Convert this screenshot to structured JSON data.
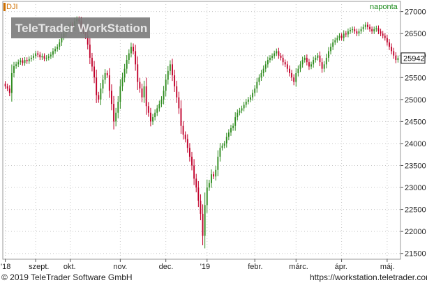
{
  "header": {
    "symbol": "DJI",
    "interval": "naponta",
    "watermark": "TeleTrader WorkStation"
  },
  "footer": {
    "copyright": "© 2019 TeleTrader Software GmbH",
    "url": "https://workstation.teletrader.com/"
  },
  "colors": {
    "up": "#2e8b1e",
    "down": "#c0002a",
    "grid": "#c8c8c8",
    "watermark_bg": "#7a7a7a",
    "axis_text": "#222222",
    "interval_text": "#1a8a1a"
  },
  "chart_data": {
    "type": "candlestick",
    "title": "DJI",
    "grid": true,
    "y_axis": {
      "position": "right",
      "min": 21400,
      "max": 27200,
      "ticks": [
        21500,
        22000,
        22500,
        23000,
        23500,
        24000,
        24500,
        25000,
        25500,
        26000,
        26500,
        27000
      ],
      "tick_labels": [
        "21500",
        "22000",
        "22500",
        "23000",
        "23500",
        "24000",
        "24500",
        "25000",
        "25500",
        "26000",
        "26500",
        "27000"
      ]
    },
    "x_axis": {
      "labels": [
        {
          "label": "'18",
          "index": 0
        },
        {
          "label": "szept.",
          "index": 14
        },
        {
          "label": "okt.",
          "index": 30
        },
        {
          "label": "nov.",
          "index": 53
        },
        {
          "label": "dec.",
          "index": 74
        },
        {
          "label": "'19",
          "index": 93
        },
        {
          "label": "febr.",
          "index": 115
        },
        {
          "label": "márc.",
          "index": 134
        },
        {
          "label": "ápr.",
          "index": 155
        },
        {
          "label": "máj.",
          "index": 176
        }
      ]
    },
    "last_value": 25942,
    "last_value_label": "25942",
    "closes": [
      25300,
      25250,
      25150,
      25600,
      25760,
      25800,
      25850,
      25890,
      25830,
      25900,
      25870,
      25920,
      25950,
      25990,
      26050,
      26020,
      25960,
      25990,
      25930,
      25950,
      25980,
      26020,
      26100,
      26150,
      26200,
      26300,
      26420,
      26500,
      26600,
      26650,
      26700,
      26650,
      26780,
      26830,
      26780,
      26600,
      26550,
      26450,
      26250,
      25950,
      25750,
      25500,
      25100,
      25000,
      25250,
      25450,
      25600,
      25550,
      25200,
      24900,
      24500,
      24700,
      24950,
      25300,
      25500,
      25700,
      25900,
      26050,
      26200,
      26100,
      25800,
      25400,
      25250,
      25050,
      25300,
      24850,
      24700,
      24500,
      24600,
      24700,
      24800,
      24900,
      25000,
      25200,
      25450,
      25650,
      25800,
      25550,
      25300,
      25050,
      24800,
      24400,
      24200,
      24100,
      23900,
      23700,
      23500,
      23200,
      23000,
      22700,
      22400,
      21900,
      22600,
      23000,
      23100,
      23300,
      23250,
      23400,
      23700,
      23900,
      23950,
      24000,
      24150,
      24250,
      24350,
      24400,
      24600,
      24700,
      24750,
      24800,
      24880,
      24950,
      25000,
      25050,
      25150,
      25250,
      25400,
      25500,
      25600,
      25700,
      25800,
      25900,
      25950,
      25990,
      26050,
      26100,
      26000,
      25950,
      25850,
      25800,
      25700,
      25600,
      25500,
      25400,
      25600,
      25700,
      25800,
      25900,
      25950,
      25850,
      25750,
      25800,
      25900,
      25950,
      26000,
      25850,
      25700,
      25800,
      25950,
      26100,
      26200,
      26300,
      26350,
      26400,
      26450,
      26400,
      26500,
      26480,
      26550,
      26580,
      26600,
      26550,
      26500,
      26550,
      26600,
      26650,
      26700,
      26650,
      26600,
      26550,
      26600,
      26620,
      26550,
      26500,
      26450,
      26400,
      26300,
      26200,
      26100,
      26000,
      25900,
      25942
    ]
  }
}
